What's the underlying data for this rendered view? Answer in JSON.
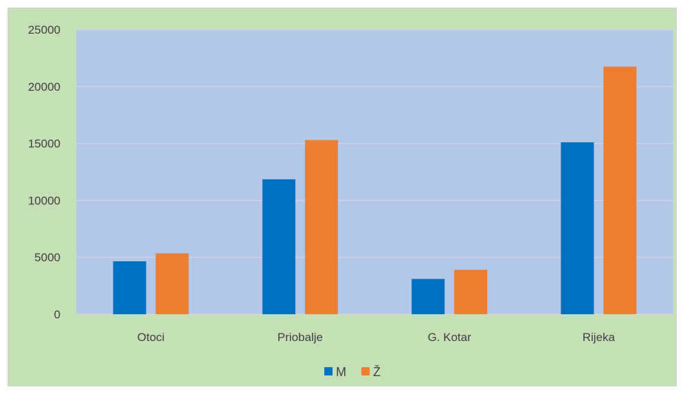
{
  "chart_data": {
    "type": "bar",
    "categories": [
      "Otoci",
      "Priobalje",
      "G. Kotar",
      "Rijeka"
    ],
    "series": [
      {
        "name": "M",
        "values": [
          4650,
          11850,
          3100,
          15100
        ],
        "color": "#0070c0"
      },
      {
        "name": "Ž",
        "values": [
          5350,
          15300,
          3900,
          21750
        ],
        "color": "#ed7d31"
      }
    ],
    "ylim": [
      0,
      25000
    ],
    "yticks": [
      "0",
      "5000",
      "10000",
      "15000",
      "20000",
      "25000"
    ],
    "grid": true,
    "legend_position": "bottom",
    "plot_background": "#b4c7e7",
    "chart_background": "#c5e0b4"
  }
}
